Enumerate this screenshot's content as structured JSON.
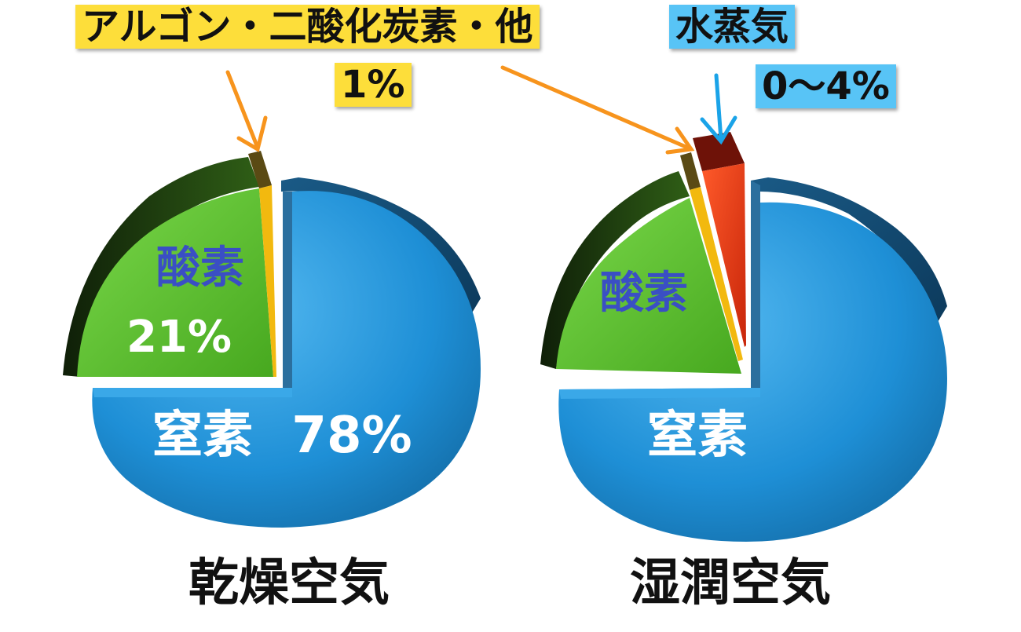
{
  "chart_data": [
    {
      "type": "pie",
      "title": "乾燥空気",
      "slices": [
        {
          "label": "窒素",
          "value": 78,
          "value_label": "78%",
          "color": "#1e90d8"
        },
        {
          "label": "酸素",
          "value": 21,
          "value_label": "21%",
          "color": "#5cc22e"
        },
        {
          "label": "アルゴン・二酸化炭素・他",
          "value": 1,
          "value_label": "1%",
          "color": "#f2b90f"
        }
      ]
    },
    {
      "type": "pie",
      "title": "湿潤空気",
      "slices": [
        {
          "label": "窒素",
          "value": 75,
          "value_label": "",
          "color": "#1e90d8"
        },
        {
          "label": "酸素",
          "value": 20,
          "value_label": "",
          "color": "#5cc22e"
        },
        {
          "label": "アルゴン・二酸化炭素・他",
          "value": 1,
          "value_label": "",
          "color": "#f2b90f"
        },
        {
          "label": "水蒸気",
          "value": 4,
          "value_label": "0〜4%",
          "color": "#e63a12"
        }
      ]
    }
  ],
  "callouts": {
    "argon_label": "アルゴン・二酸化炭素・他",
    "argon_value": "1%",
    "vapor_label": "水蒸気",
    "vapor_value": "0〜4%",
    "callout_colors": {
      "yellow": "#fdde3a",
      "blue": "#58c4f6"
    },
    "arrow_colors": {
      "orange": "#f7941d",
      "blue": "#1aa3e8"
    }
  }
}
